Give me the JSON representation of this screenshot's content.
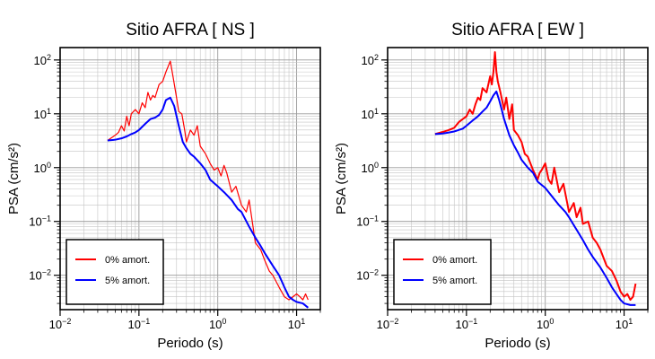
{
  "chart_data": [
    {
      "type": "line",
      "title": "Sitio AFRA [ NS ]",
      "xlabel": "Periodo (s)",
      "ylabel": "PSA (cm/s²)",
      "x_scale": "log",
      "y_scale": "log",
      "xlim": [
        0.01,
        20
      ],
      "ylim": [
        0.0023,
        170
      ],
      "grid": true,
      "legend_position": "bottom-left",
      "x_ticks": [
        {
          "value": 0.01,
          "base": "10",
          "exp": "−2"
        },
        {
          "value": 0.1,
          "base": "10",
          "exp": "−1"
        },
        {
          "value": 1,
          "base": "10",
          "exp": "0"
        },
        {
          "value": 10,
          "base": "10",
          "exp": "1"
        }
      ],
      "y_ticks": [
        {
          "value": 0.01,
          "base": "10",
          "exp": "−2"
        },
        {
          "value": 0.1,
          "base": "10",
          "exp": "−1"
        },
        {
          "value": 1,
          "base": "10",
          "exp": "0"
        },
        {
          "value": 10,
          "base": "10",
          "exp": "1"
        },
        {
          "value": 100,
          "base": "10",
          "exp": "2"
        }
      ],
      "series": [
        {
          "name": "0% amort.",
          "color": "#ff0000",
          "width": 1.2,
          "x": [
            0.04,
            0.05,
            0.055,
            0.06,
            0.065,
            0.07,
            0.075,
            0.08,
            0.09,
            0.1,
            0.11,
            0.12,
            0.13,
            0.14,
            0.15,
            0.16,
            0.18,
            0.2,
            0.22,
            0.25,
            0.27,
            0.3,
            0.32,
            0.35,
            0.38,
            0.4,
            0.45,
            0.5,
            0.55,
            0.6,
            0.7,
            0.8,
            0.9,
            1.0,
            1.1,
            1.2,
            1.3,
            1.5,
            1.7,
            2.0,
            2.3,
            2.5,
            2.8,
            3.0,
            3.5,
            4.0,
            4.5,
            5.0,
            6.0,
            7.0,
            8.0,
            9.0,
            10.0,
            11.0,
            12.0,
            13.0,
            14.0
          ],
          "y": [
            3.2,
            4.0,
            4.5,
            6.0,
            4.8,
            9.0,
            6.0,
            10.0,
            12.0,
            10.0,
            16.0,
            13.0,
            25.0,
            18.0,
            22.0,
            20.0,
            35.0,
            40.0,
            60.0,
            95.0,
            50.0,
            20.0,
            11.0,
            10.0,
            5.0,
            3.0,
            5.0,
            4.0,
            6.0,
            2.5,
            1.8,
            1.2,
            0.9,
            1.0,
            0.7,
            1.1,
            0.8,
            0.35,
            0.45,
            0.2,
            0.15,
            0.25,
            0.08,
            0.04,
            0.03,
            0.018,
            0.012,
            0.01,
            0.006,
            0.004,
            0.0035,
            0.004,
            0.0045,
            0.004,
            0.0035,
            0.0045,
            0.0035
          ]
        },
        {
          "name": "5% amort.",
          "color": "#0000ff",
          "width": 2,
          "x": [
            0.04,
            0.05,
            0.06,
            0.07,
            0.08,
            0.09,
            0.1,
            0.12,
            0.14,
            0.16,
            0.18,
            0.2,
            0.22,
            0.25,
            0.28,
            0.32,
            0.36,
            0.4,
            0.45,
            0.5,
            0.6,
            0.7,
            0.8,
            1.0,
            1.2,
            1.5,
            1.8,
            2.0,
            2.5,
            3.0,
            3.5,
            4.0,
            5.0,
            6.0,
            7.0,
            8.0,
            9.0,
            10.0,
            12.0,
            14.0
          ],
          "y": [
            3.2,
            3.3,
            3.5,
            3.8,
            4.2,
            4.5,
            5.0,
            6.5,
            8.0,
            8.5,
            9.5,
            12.0,
            18.0,
            20.0,
            14.0,
            6.0,
            3.0,
            2.3,
            1.8,
            1.6,
            1.2,
            0.9,
            0.6,
            0.45,
            0.35,
            0.25,
            0.17,
            0.15,
            0.08,
            0.05,
            0.035,
            0.025,
            0.015,
            0.01,
            0.006,
            0.004,
            0.0035,
            0.0032,
            0.003,
            0.0025
          ]
        }
      ]
    },
    {
      "type": "line",
      "title": "Sitio AFRA [ EW ]",
      "xlabel": "Periodo (s)",
      "ylabel": "PSA (cm/s²)",
      "x_scale": "log",
      "y_scale": "log",
      "xlim": [
        0.01,
        20
      ],
      "ylim": [
        0.0023,
        170
      ],
      "grid": true,
      "legend_position": "bottom-left",
      "x_ticks": [
        {
          "value": 0.01,
          "base": "10",
          "exp": "−2"
        },
        {
          "value": 0.1,
          "base": "10",
          "exp": "−1"
        },
        {
          "value": 1,
          "base": "10",
          "exp": "0"
        },
        {
          "value": 10,
          "base": "10",
          "exp": "1"
        }
      ],
      "y_ticks": [
        {
          "value": 0.01,
          "base": "10",
          "exp": "−2"
        },
        {
          "value": 0.1,
          "base": "10",
          "exp": "−1"
        },
        {
          "value": 1,
          "base": "10",
          "exp": "0"
        },
        {
          "value": 10,
          "base": "10",
          "exp": "1"
        },
        {
          "value": 100,
          "base": "10",
          "exp": "2"
        }
      ],
      "series": [
        {
          "name": "0% amort.",
          "color": "#ff0000",
          "width": 2,
          "x": [
            0.04,
            0.05,
            0.06,
            0.07,
            0.08,
            0.09,
            0.1,
            0.11,
            0.12,
            0.13,
            0.14,
            0.15,
            0.16,
            0.18,
            0.2,
            0.21,
            0.22,
            0.23,
            0.24,
            0.25,
            0.27,
            0.3,
            0.32,
            0.35,
            0.38,
            0.4,
            0.45,
            0.5,
            0.55,
            0.6,
            0.7,
            0.8,
            0.85,
            0.9,
            1.0,
            1.1,
            1.2,
            1.3,
            1.5,
            1.7,
            2.0,
            2.3,
            2.5,
            2.8,
            3.0,
            3.5,
            4.0,
            4.5,
            5.0,
            6.0,
            7.0,
            8.0,
            9.0,
            10.0,
            11.0,
            12.0,
            13.0,
            14.0
          ],
          "y": [
            4.2,
            4.6,
            5.0,
            5.5,
            7.0,
            8.0,
            9.0,
            12.0,
            10.0,
            15.0,
            20.0,
            18.0,
            30.0,
            25.0,
            50.0,
            35.0,
            60.0,
            140.0,
            60.0,
            40.0,
            25.0,
            12.0,
            20.0,
            8.0,
            15.0,
            5.0,
            4.0,
            3.0,
            1.8,
            1.6,
            0.9,
            0.6,
            0.8,
            0.9,
            1.2,
            0.6,
            0.5,
            1.0,
            0.35,
            0.5,
            0.15,
            0.22,
            0.12,
            0.18,
            0.09,
            0.1,
            0.05,
            0.04,
            0.03,
            0.015,
            0.012,
            0.008,
            0.005,
            0.004,
            0.0045,
            0.0035,
            0.004,
            0.007
          ]
        },
        {
          "name": "5% amort.",
          "color": "#0000ff",
          "width": 2,
          "x": [
            0.04,
            0.05,
            0.06,
            0.07,
            0.08,
            0.09,
            0.1,
            0.12,
            0.14,
            0.16,
            0.18,
            0.2,
            0.22,
            0.24,
            0.26,
            0.28,
            0.3,
            0.35,
            0.4,
            0.45,
            0.5,
            0.6,
            0.7,
            0.8,
            1.0,
            1.2,
            1.5,
            1.8,
            2.0,
            2.5,
            3.0,
            3.5,
            4.0,
            5.0,
            6.0,
            7.0,
            8.0,
            9.0,
            10.0,
            12.0,
            14.0
          ],
          "y": [
            4.2,
            4.3,
            4.5,
            4.7,
            5.0,
            5.3,
            6.0,
            7.5,
            9.0,
            11.0,
            13.0,
            17.0,
            22.0,
            26.0,
            18.0,
            12.0,
            8.0,
            4.0,
            2.6,
            1.9,
            1.4,
            1.0,
            0.8,
            0.55,
            0.42,
            0.3,
            0.2,
            0.15,
            0.12,
            0.07,
            0.045,
            0.03,
            0.022,
            0.014,
            0.009,
            0.006,
            0.0045,
            0.0035,
            0.003,
            0.0028,
            0.0028
          ]
        }
      ]
    }
  ]
}
